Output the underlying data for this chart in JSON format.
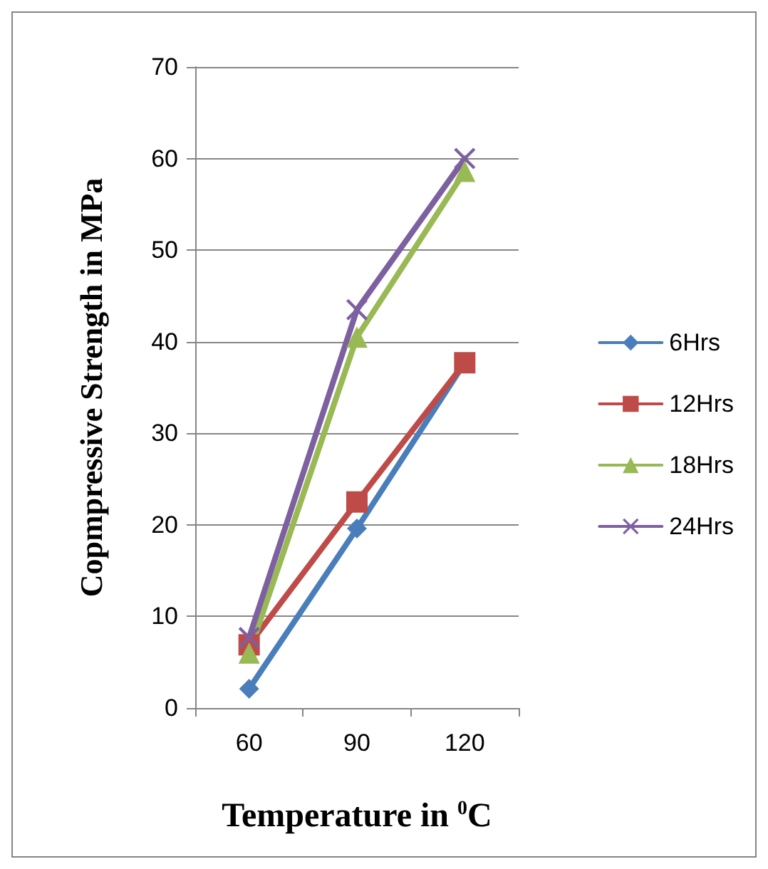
{
  "chart_data": {
    "type": "line",
    "categories": [
      "60",
      "90",
      "120"
    ],
    "xlabel": "Temperature in $^{0}$C",
    "ylabel": "Copmpressive Strength in MPa",
    "ylim": [
      0,
      70
    ],
    "yticks": [
      0,
      10,
      20,
      30,
      40,
      50,
      60,
      70
    ],
    "grid": "y",
    "legend": "right",
    "series": [
      {
        "name": "6Hrs",
        "color": "#4a7ebb",
        "marker": "diamond",
        "values": [
          2.1,
          19.6,
          37.7
        ]
      },
      {
        "name": "12Hrs",
        "color": "#be4b48",
        "marker": "square",
        "values": [
          6.9,
          22.5,
          37.7
        ]
      },
      {
        "name": "18Hrs",
        "color": "#98b954",
        "marker": "triangle",
        "values": [
          6.0,
          40.5,
          58.6
        ]
      },
      {
        "name": "24Hrs",
        "color": "#7d60a0",
        "marker": "cross",
        "values": [
          7.7,
          43.5,
          60
        ]
      }
    ]
  }
}
